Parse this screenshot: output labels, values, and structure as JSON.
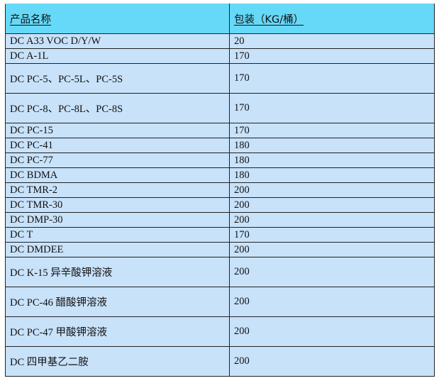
{
  "table": {
    "headers": [
      "产品名称",
      "包装（KG/桶）"
    ],
    "rows": [
      {
        "name": "DC A33 VOC D/Y/W",
        "package": "20",
        "tall": false
      },
      {
        "name": "DC A-1L",
        "package": "170",
        "tall": false
      },
      {
        "name": "DC PC-5、PC-5L、PC-5S",
        "package": "170",
        "tall": true
      },
      {
        "name": "DC PC-8、PC-8L、PC-8S",
        "package": "170",
        "tall": true
      },
      {
        "name": "DC PC-15",
        "package": "170",
        "tall": false
      },
      {
        "name": "DC PC-41",
        "package": "180",
        "tall": false
      },
      {
        "name": "DC PC-77",
        "package": "180",
        "tall": false
      },
      {
        "name": "DC BDMA",
        "package": "180",
        "tall": false
      },
      {
        "name": "DC TMR-2",
        "package": "200",
        "tall": false
      },
      {
        "name": "DC TMR-30",
        "package": "200",
        "tall": false
      },
      {
        "name": "DC DMP-30",
        "package": "200",
        "tall": false
      },
      {
        "name": "DC T",
        "package": "170",
        "tall": false
      },
      {
        "name": "DC DMDEE",
        "package": "200",
        "tall": false
      },
      {
        "name": "DC K-15 异辛酸钾溶液",
        "package": "200",
        "tall": true
      },
      {
        "name": "DC PC-46 醋酸钾溶液",
        "package": "200",
        "tall": true
      },
      {
        "name": "DC PC-47 甲酸钾溶液",
        "package": "200",
        "tall": true
      },
      {
        "name": "DC  四甲基乙二胺",
        "package": "200",
        "tall": true
      }
    ]
  },
  "colors": {
    "header_bg": "#66d8f8",
    "row_bg": "#c8e2fa",
    "border": "#222222"
  }
}
